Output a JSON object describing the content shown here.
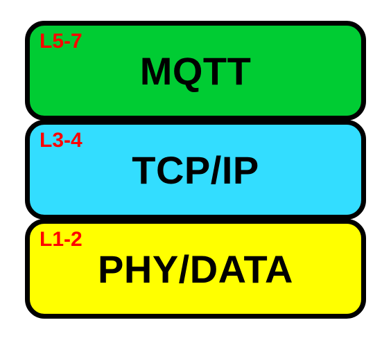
{
  "diagram": {
    "type": "layered-stack",
    "background_color": "#ffffff",
    "border_color": "#000000",
    "border_width": 7,
    "border_radius": 28,
    "tag_color": "#ff0000",
    "title_color": "#000000",
    "tag_fontsize": 30,
    "title_fontsize": 56,
    "layers": [
      {
        "tag": "L5-7",
        "title": "MQTT",
        "fill": "#00cc33"
      },
      {
        "tag": "L3-4",
        "title": "TCP/IP",
        "fill": "#33ddff"
      },
      {
        "tag": "L1-2",
        "title": "PHY/DATA",
        "fill": "#ffff00"
      }
    ]
  }
}
